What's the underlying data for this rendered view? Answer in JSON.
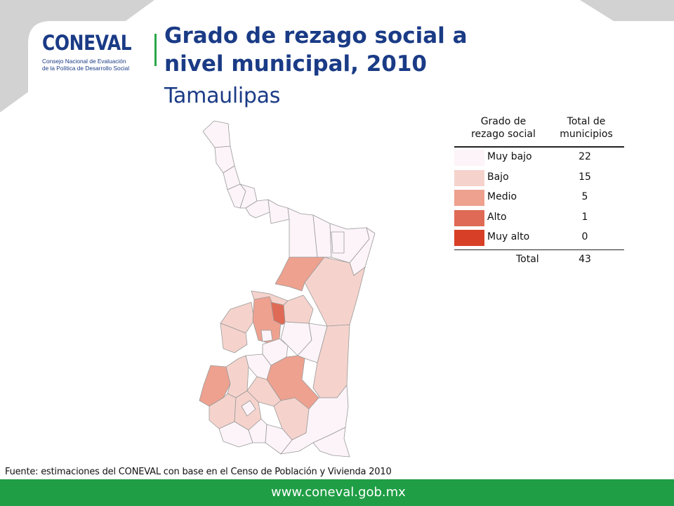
{
  "header": {
    "logo_text": "CONEVAL",
    "logo_subtitle_line1": "Consejo Nacional de Evaluación",
    "logo_subtitle_line2": "de la Política de Desarrollo Social",
    "title_line1": "Grado de rezago social a",
    "title_line2": "nivel municipal, 2010",
    "subtitle": "Tamaulipas"
  },
  "legend": {
    "col1_line1": "Grado de",
    "col1_line2": "rezago social",
    "col2_line1": "Total de",
    "col2_line2": "municipios",
    "rows": [
      {
        "label": "Muy bajo",
        "count": "22",
        "color": "#fcf4f8"
      },
      {
        "label": "Bajo",
        "count": "15",
        "color": "#f5d3cc"
      },
      {
        "label": "Medio",
        "count": "5",
        "color": "#eea18f"
      },
      {
        "label": "Alto",
        "count": "1",
        "color": "#df6a55"
      },
      {
        "label": "Muy alto",
        "count": "0",
        "color": "#d74026"
      }
    ],
    "total_label": "Total",
    "total_count": "43"
  },
  "map": {
    "region": "Tamaulipas",
    "boundary_color": "#9a9a9a"
  },
  "source": "Fuente: estimaciones del CONEVAL con base en el Censo de Población y Vivienda 2010",
  "footer": {
    "url": "www.coneval.gob.mx",
    "color": "#1f9e45"
  }
}
